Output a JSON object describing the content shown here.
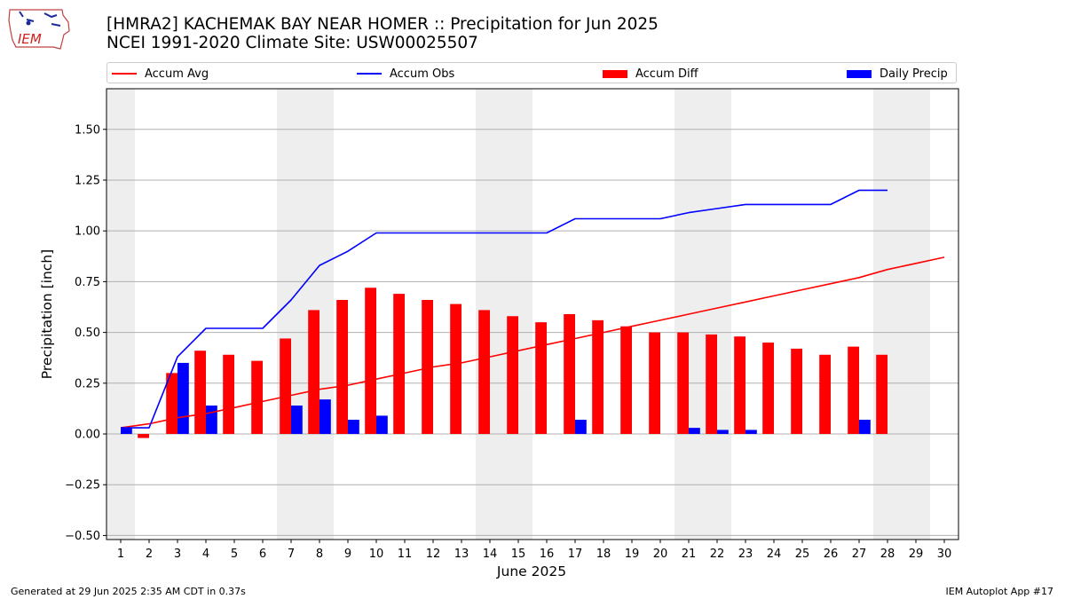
{
  "header": {
    "title_line1": "[HMRA2] KACHEMAK BAY NEAR HOMER :: Precipitation for Jun 2025",
    "title_line2": "NCEI 1991-2020 Climate Site: USW00025507",
    "logo_text": "IEM"
  },
  "legend": {
    "items": [
      {
        "label": "Accum Avg",
        "color": "#ff0000",
        "kind": "line"
      },
      {
        "label": "Accum Obs",
        "color": "#0000ff",
        "kind": "line"
      },
      {
        "label": "Accum Diff",
        "color": "#ff0000",
        "kind": "bar"
      },
      {
        "label": "Daily Precip",
        "color": "#0000ff",
        "kind": "bar"
      }
    ]
  },
  "footer": {
    "left": "Generated at 29 Jun 2025 2:35 AM CDT in 0.37s",
    "right": "IEM Autoplot App #17"
  },
  "chart_data": {
    "type": "bar",
    "xlabel": "June 2025",
    "ylabel": "Precipitation [inch]",
    "xlim": [
      0.5,
      30.5
    ],
    "ylim": [
      -0.52,
      1.7
    ],
    "yticks": [
      -0.5,
      -0.25,
      0.0,
      0.25,
      0.5,
      0.75,
      1.0,
      1.25,
      1.5
    ],
    "ytick_labels": [
      "−0.50",
      "−0.25",
      "0.00",
      "0.25",
      "0.50",
      "0.75",
      "1.00",
      "1.25",
      "1.50"
    ],
    "x": [
      1,
      2,
      3,
      4,
      5,
      6,
      7,
      8,
      9,
      10,
      11,
      12,
      13,
      14,
      15,
      16,
      17,
      18,
      19,
      20,
      21,
      22,
      23,
      24,
      25,
      26,
      27,
      28,
      29,
      30
    ],
    "weekend_days": [
      1,
      7,
      8,
      14,
      15,
      21,
      22,
      28,
      29
    ],
    "grid": "horizontal",
    "colors": {
      "avg": "#ff0000",
      "obs": "#0000ff",
      "diff": "#ff0000",
      "daily": "#0000ff",
      "shade": "#eeeeee"
    },
    "series": [
      {
        "name": "Accum Avg",
        "kind": "line",
        "values": [
          0.03,
          0.05,
          0.08,
          0.1,
          0.13,
          0.16,
          0.19,
          0.22,
          0.24,
          0.27,
          0.3,
          0.33,
          0.35,
          0.38,
          0.41,
          0.44,
          0.47,
          0.5,
          0.53,
          0.56,
          0.59,
          0.62,
          0.65,
          0.68,
          0.71,
          0.74,
          0.77,
          0.81,
          0.84,
          0.87
        ]
      },
      {
        "name": "Accum Obs",
        "kind": "line",
        "values": [
          0.03,
          0.03,
          0.38,
          0.52,
          0.52,
          0.52,
          0.66,
          0.83,
          0.9,
          0.99,
          0.99,
          0.99,
          0.99,
          0.99,
          0.99,
          0.99,
          1.06,
          1.06,
          1.06,
          1.06,
          1.09,
          1.11,
          1.13,
          1.13,
          1.13,
          1.13,
          1.2,
          1.2,
          null,
          null
        ]
      },
      {
        "name": "Accum Diff",
        "kind": "bar",
        "values": [
          0.0,
          -0.02,
          0.3,
          0.41,
          0.39,
          0.36,
          0.47,
          0.61,
          0.66,
          0.72,
          0.69,
          0.66,
          0.64,
          0.61,
          0.58,
          0.55,
          0.59,
          0.56,
          0.53,
          0.5,
          0.5,
          0.49,
          0.48,
          0.45,
          0.42,
          0.39,
          0.43,
          0.39,
          null,
          null
        ]
      },
      {
        "name": "Daily Precip",
        "kind": "bar",
        "values": [
          0.03,
          0.0,
          0.35,
          0.14,
          0.0,
          0.0,
          0.14,
          0.17,
          0.07,
          0.09,
          0.0,
          0.0,
          0.0,
          0.0,
          0.0,
          0.0,
          0.07,
          0.0,
          0.0,
          0.0,
          0.03,
          0.02,
          0.02,
          0.0,
          0.0,
          0.0,
          0.07,
          null,
          null,
          null
        ]
      }
    ]
  }
}
